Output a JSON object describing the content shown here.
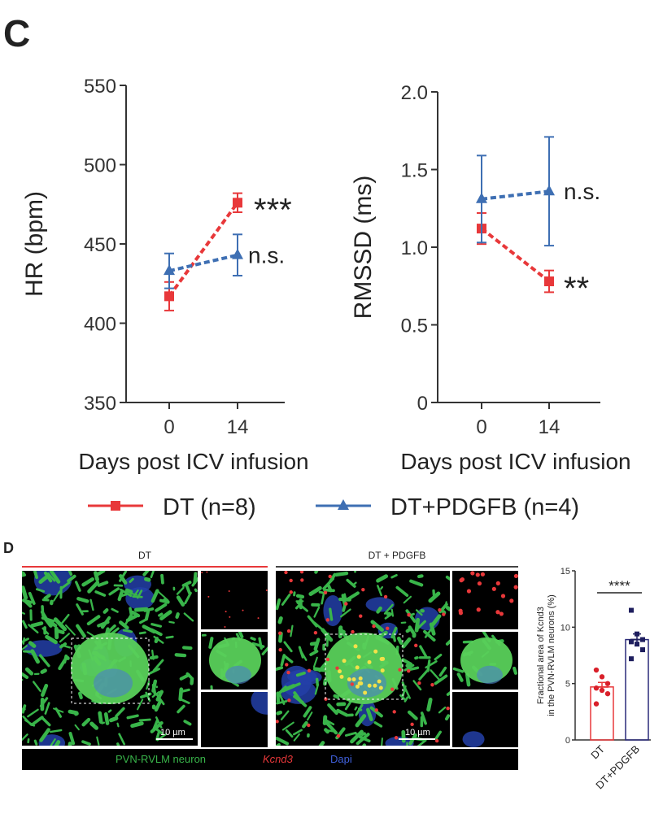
{
  "panel_c": {
    "letter": "C"
  },
  "panel_d": {
    "letter": "D",
    "image_titles": [
      "DT",
      "DT + PDGFB"
    ],
    "scale_bar_label": "10 µm",
    "channel_labels": {
      "neuron": "PVN-RVLM neuron",
      "gene": "Kcnd3",
      "dapi": "Dapi"
    }
  },
  "colors": {
    "dt": "#e8383a",
    "pdgfb": "#3e6fb3",
    "dt_dots": "#d9202a",
    "pdgfb_dots": "#1e1e5e",
    "neuron_green": "#39b54a",
    "dapi_blue": "#2340a8"
  },
  "legend": {
    "dt_label": "DT (n=8)",
    "pdgfb_label": "DT+PDGFB (n=4)"
  },
  "chart_data": [
    {
      "id": "hr",
      "type": "line",
      "title": "",
      "xlabel": "Days post ICV infusion",
      "ylabel": "HR (bpm)",
      "x": [
        0,
        14
      ],
      "xticks": [
        "0",
        "14"
      ],
      "ylim": [
        350,
        550
      ],
      "yticks": [
        "350",
        "400",
        "450",
        "500",
        "550"
      ],
      "series": [
        {
          "name": "DT (n=8)",
          "values": [
            417,
            476
          ],
          "err": [
            9,
            6
          ],
          "annotation": "***"
        },
        {
          "name": "DT+PDGFB (n=4)",
          "values": [
            433,
            443
          ],
          "err": [
            11,
            13
          ],
          "annotation": "n.s."
        }
      ]
    },
    {
      "id": "rmssd",
      "type": "line",
      "title": "",
      "xlabel": "Days post ICV infusion",
      "ylabel": "RMSSD (ms)",
      "x": [
        0,
        14
      ],
      "xticks": [
        "0",
        "14"
      ],
      "ylim": [
        0,
        2.0
      ],
      "yticks": [
        "0",
        "0.5",
        "1.0",
        "1.5",
        "2.0"
      ],
      "series": [
        {
          "name": "DT (n=8)",
          "values": [
            1.12,
            0.78
          ],
          "err": [
            0.1,
            0.07
          ],
          "annotation": "**"
        },
        {
          "name": "DT+PDGFB (n=4)",
          "values": [
            1.31,
            1.36
          ],
          "err": [
            0.28,
            0.35
          ],
          "annotation": "n.s."
        }
      ]
    },
    {
      "id": "kcnd3",
      "type": "bar",
      "title": "",
      "ylabel_lines": [
        "Fractional area of Kcnd3",
        "in the PVN-RVLM neurons (%)"
      ],
      "categories": [
        "DT",
        "DT+PDGFB"
      ],
      "values": [
        4.7,
        8.9
      ],
      "err": [
        0.4,
        0.5
      ],
      "points": [
        [
          6.2,
          5.6,
          5.0,
          4.6,
          4.4,
          4.1,
          3.2
        ],
        [
          11.5,
          9.4,
          8.9,
          8.7,
          8.5,
          8.0,
          7.2
        ]
      ],
      "ylim": [
        0,
        15
      ],
      "yticks": [
        "0",
        "5",
        "10",
        "15"
      ],
      "annotation": "****"
    }
  ]
}
